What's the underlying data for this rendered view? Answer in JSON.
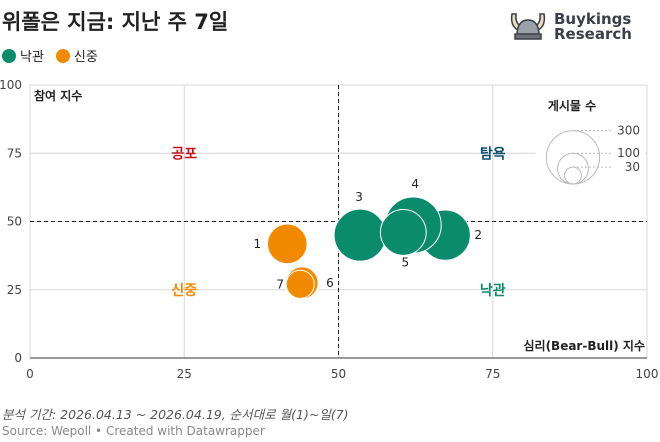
{
  "title": "위폴은 지금: 지난 주 7일",
  "legend": [
    {
      "label": "낙관",
      "color": "#0a8b6c"
    },
    {
      "label": "신중",
      "color": "#f28a00"
    }
  ],
  "logo": {
    "line1": "Buykings",
    "line2": "Research"
  },
  "footer": {
    "note": "분석 기간: 2026.04.13 ~ 2026.04.19, 순서대로 월(1)~일(7)",
    "source": "Source: Wepoll • Created with Datawrapper"
  },
  "chart_data": {
    "type": "scatter",
    "subtype": "bubble",
    "title": "위폴은 지금: 지난 주 7일",
    "xlabel": "심리(Bear-Bull) 지수",
    "ylabel": "참여 지수",
    "xlim": [
      0,
      100
    ],
    "ylim": [
      0,
      100
    ],
    "xticks": [
      0,
      25,
      50,
      75,
      100
    ],
    "yticks": [
      0,
      25,
      50,
      75,
      100
    ],
    "reference_lines": {
      "x": 50,
      "y": 50
    },
    "grid": true,
    "quadrant_labels": [
      {
        "text": "공포",
        "x": 25,
        "y": 75,
        "color": "#c0151d"
      },
      {
        "text": "탐욕",
        "x": 75,
        "y": 75,
        "color": "#0d4f6b"
      },
      {
        "text": "신중",
        "x": 25,
        "y": 25,
        "color": "#f28a00"
      },
      {
        "text": "낙관",
        "x": 75,
        "y": 25,
        "color": "#0a8b6c"
      }
    ],
    "size_legend": {
      "title": "게시물 수",
      "values": [
        300,
        100,
        30
      ]
    },
    "points": [
      {
        "label": "1",
        "x": 41.7,
        "y": 41.8,
        "size": 150,
        "group": "신중"
      },
      {
        "label": "2",
        "x": 67.3,
        "y": 45.0,
        "size": 240,
        "group": "낙관"
      },
      {
        "label": "3",
        "x": 53.5,
        "y": 45.0,
        "size": 258,
        "group": "낙관"
      },
      {
        "label": "4",
        "x": 62.1,
        "y": 48.7,
        "size": 300,
        "group": "낙관"
      },
      {
        "label": "5",
        "x": 60.5,
        "y": 46.0,
        "size": 200,
        "group": "낙관"
      },
      {
        "label": "6",
        "x": 44.1,
        "y": 27.5,
        "size": 98,
        "group": "신중"
      },
      {
        "label": "7",
        "x": 43.8,
        "y": 27.0,
        "size": 75,
        "group": "신중"
      }
    ]
  }
}
